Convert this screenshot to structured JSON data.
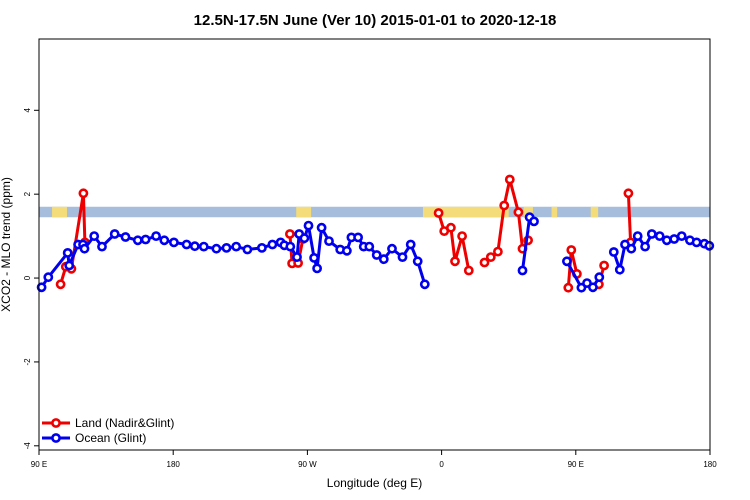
{
  "chart_data": {
    "type": "line",
    "title": "12.5N-17.5N June (Ver 10)   2015-01-01 to 2020-12-18",
    "xlabel": "Longitude (deg E)",
    "ylabel": "XCO2 - MLO trend (ppm)",
    "xlim": [
      90,
      270
    ],
    "ylim": [
      -4.1,
      5.7
    ],
    "xticks": [
      {
        "value": 90,
        "label": "90 E"
      },
      {
        "value": 126,
        "label": "180"
      },
      {
        "value": 162,
        "label": "90 W"
      },
      {
        "value": 198,
        "label": "0"
      },
      {
        "value": 234,
        "label": "90 E"
      },
      {
        "value": 270,
        "label": "180"
      }
    ],
    "yticks": [
      {
        "value": -4,
        "label": "-4"
      },
      {
        "value": -2,
        "label": "-2"
      },
      {
        "value": 0,
        "label": "0"
      },
      {
        "value": 2,
        "label": "2"
      },
      {
        "value": 4,
        "label": "4"
      }
    ],
    "grid": false,
    "legend_position": "bottom-left",
    "land_band": {
      "y_low": 1.45,
      "y_high": 1.7,
      "ocean_color": "#a6bddb",
      "land_color": "#f5dc7a"
    },
    "land_spans": [
      [
        93.5,
        97.5
      ],
      [
        159,
        163
      ],
      [
        193,
        216
      ],
      [
        220,
        222.5
      ],
      [
        227.5,
        229
      ],
      [
        238,
        240
      ]
    ],
    "series": [
      {
        "name": "Land (Nadir&Glint)",
        "color": "#ee0000",
        "segments": [
          [
            [
              95.8,
              -0.15
            ],
            [
              97.2,
              0.27
            ],
            [
              98.7,
              0.22
            ],
            [
              101.9,
              2.02
            ],
            [
              102.3,
              0.85
            ]
          ],
          [
            [
              157.3,
              1.05
            ],
            [
              157.9,
              0.35
            ],
            [
              159.5,
              0.36
            ],
            [
              160.8,
              0.93
            ]
          ],
          [
            [
              197.2,
              1.55
            ],
            [
              198.7,
              1.12
            ],
            [
              200.5,
              1.2
            ],
            [
              201.6,
              0.4
            ],
            [
              203.5,
              1.0
            ],
            [
              205.3,
              0.18
            ]
          ],
          [
            [
              209.5,
              0.37
            ],
            [
              211.2,
              0.5
            ],
            [
              213.1,
              0.63
            ],
            [
              214.8,
              1.73
            ],
            [
              216.3,
              2.35
            ],
            [
              218.6,
              1.57
            ],
            [
              219.7,
              0.7
            ],
            [
              221.2,
              0.9
            ]
          ],
          [
            [
              232.0,
              -0.23
            ],
            [
              232.8,
              0.67
            ],
            [
              234.3,
              0.1
            ]
          ],
          [
            [
              240.2,
              -0.15
            ],
            [
              241.6,
              0.3
            ]
          ],
          [
            [
              248.1,
              2.02
            ],
            [
              248.7,
              0.85
            ]
          ]
        ]
      },
      {
        "name": "Ocean (Glint)",
        "color": "#0000ee",
        "segments": [
          [
            [
              90.7,
              -0.22
            ],
            [
              92.5,
              0.02
            ],
            [
              97.7,
              0.6
            ],
            [
              98.1,
              0.3
            ],
            [
              100.5,
              0.8
            ],
            [
              101.8,
              0.8
            ],
            [
              102.2,
              0.7
            ],
            [
              104.8,
              1.0
            ],
            [
              106.9,
              0.75
            ],
            [
              110.3,
              1.05
            ],
            [
              113.2,
              0.98
            ],
            [
              116.5,
              0.9
            ],
            [
              118.6,
              0.92
            ],
            [
              121.4,
              1.0
            ],
            [
              123.6,
              0.9
            ],
            [
              126.2,
              0.85
            ],
            [
              129.6,
              0.8
            ],
            [
              131.8,
              0.76
            ],
            [
              134.2,
              0.75
            ],
            [
              137.6,
              0.7
            ],
            [
              140.3,
              0.72
            ],
            [
              142.9,
              0.75
            ],
            [
              145.9,
              0.68
            ],
            [
              149.8,
              0.72
            ],
            [
              152.6,
              0.8
            ],
            [
              154.8,
              0.85
            ],
            [
              155.8,
              0.78
            ],
            [
              157.4,
              0.75
            ],
            [
              159.2,
              0.5
            ],
            [
              159.8,
              1.05
            ],
            [
              161.2,
              0.95
            ],
            [
              162.3,
              1.25
            ],
            [
              163.8,
              0.48
            ],
            [
              164.6,
              0.23
            ],
            [
              165.8,
              1.2
            ],
            [
              167.8,
              0.88
            ],
            [
              170.8,
              0.68
            ],
            [
              172.6,
              0.65
            ],
            [
              173.8,
              0.97
            ],
            [
              175.6,
              0.97
            ],
            [
              177.1,
              0.75
            ],
            [
              178.6,
              0.75
            ],
            [
              180.6,
              0.55
            ],
            [
              182.5,
              0.45
            ],
            [
              184.7,
              0.7
            ],
            [
              187.5,
              0.5
            ],
            [
              189.7,
              0.8
            ],
            [
              191.6,
              0.4
            ],
            [
              193.5,
              -0.15
            ]
          ],
          [
            [
              219.7,
              0.18
            ],
            [
              221.6,
              1.45
            ],
            [
              222.8,
              1.35
            ]
          ],
          [
            [
              231.6,
              0.4
            ],
            [
              235.5,
              -0.23
            ],
            [
              237.0,
              -0.12
            ],
            [
              238.6,
              -0.22
            ],
            [
              240.3,
              0.02
            ]
          ],
          [
            [
              244.2,
              0.62
            ],
            [
              245.8,
              0.2
            ],
            [
              247.2,
              0.8
            ],
            [
              248.9,
              0.7
            ],
            [
              250.6,
              1.0
            ],
            [
              252.6,
              0.75
            ],
            [
              254.4,
              1.05
            ],
            [
              256.5,
              1.0
            ],
            [
              258.4,
              0.9
            ],
            [
              260.4,
              0.93
            ],
            [
              262.4,
              1.0
            ],
            [
              264.6,
              0.9
            ],
            [
              266.4,
              0.85
            ],
            [
              268.5,
              0.82
            ],
            [
              269.8,
              0.77
            ]
          ]
        ]
      }
    ]
  }
}
